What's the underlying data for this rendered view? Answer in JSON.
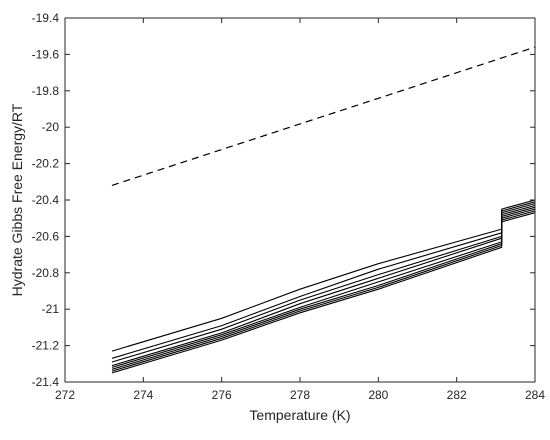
{
  "chart_data": {
    "type": "line",
    "title": "",
    "xlabel": "Temperature (K)",
    "ylabel": "Hydrate Gibbs Free Energy/RT",
    "xlim": [
      272,
      284
    ],
    "ylim": [
      -21.4,
      -19.4
    ],
    "xticks": [
      272,
      274,
      276,
      278,
      280,
      282,
      284
    ],
    "xtick_labels": [
      "272",
      "274",
      "276",
      "278",
      "280",
      "282",
      "284"
    ],
    "yticks": [
      -21.4,
      -21.2,
      -21,
      -20.8,
      -20.6,
      -20.4,
      -20.2,
      -20,
      -19.8,
      -19.6,
      -19.4
    ],
    "ytick_labels": [
      "-21.4",
      "-21.2",
      "-21",
      "-20.8",
      "-20.6",
      "-20.4",
      "-20.2",
      "-20",
      "-19.8",
      "-19.6",
      "-19.4"
    ],
    "grid": false,
    "line_color": "#000000",
    "series": [
      {
        "style": "dashed",
        "x": [
          273.2,
          284
        ],
        "y": [
          -20.32,
          -19.56
        ]
      },
      {
        "style": "solid",
        "x": [
          273.2,
          276,
          278,
          280,
          283.15,
          283.15,
          284
        ],
        "y": [
          -21.23,
          -21.05,
          -20.89,
          -20.75,
          -20.56,
          -20.45,
          -20.4
        ]
      },
      {
        "style": "solid",
        "x": [
          273.2,
          276,
          278,
          280,
          283.15,
          283.15,
          284
        ],
        "y": [
          -21.27,
          -21.09,
          -20.93,
          -20.78,
          -20.58,
          -20.46,
          -20.41
        ]
      },
      {
        "style": "solid",
        "x": [
          273.2,
          276,
          278,
          280,
          283.15,
          283.15,
          284
        ],
        "y": [
          -21.29,
          -21.11,
          -20.95,
          -20.81,
          -20.6,
          -20.47,
          -20.42
        ]
      },
      {
        "style": "solid",
        "x": [
          273.2,
          276,
          278,
          280,
          283.15,
          283.15,
          284
        ],
        "y": [
          -21.31,
          -21.13,
          -20.97,
          -20.83,
          -20.61,
          -20.48,
          -20.43
        ]
      },
      {
        "style": "solid",
        "x": [
          273.2,
          276,
          278,
          280,
          283.15,
          283.15,
          284
        ],
        "y": [
          -21.32,
          -21.14,
          -20.99,
          -20.85,
          -20.63,
          -20.49,
          -20.44
        ]
      },
      {
        "style": "solid",
        "x": [
          273.2,
          276,
          278,
          280,
          283.15,
          283.15,
          284
        ],
        "y": [
          -21.33,
          -21.15,
          -21.0,
          -20.87,
          -20.64,
          -20.5,
          -20.45
        ]
      },
      {
        "style": "solid",
        "x": [
          273.2,
          276,
          278,
          280,
          283.15,
          283.15,
          284
        ],
        "y": [
          -21.34,
          -21.16,
          -21.01,
          -20.88,
          -20.65,
          -20.51,
          -20.46
        ]
      },
      {
        "style": "solid",
        "x": [
          273.2,
          276,
          278,
          280,
          283.15,
          283.15,
          284
        ],
        "y": [
          -21.35,
          -21.17,
          -21.02,
          -20.89,
          -20.66,
          -20.52,
          -20.47
        ]
      }
    ]
  }
}
